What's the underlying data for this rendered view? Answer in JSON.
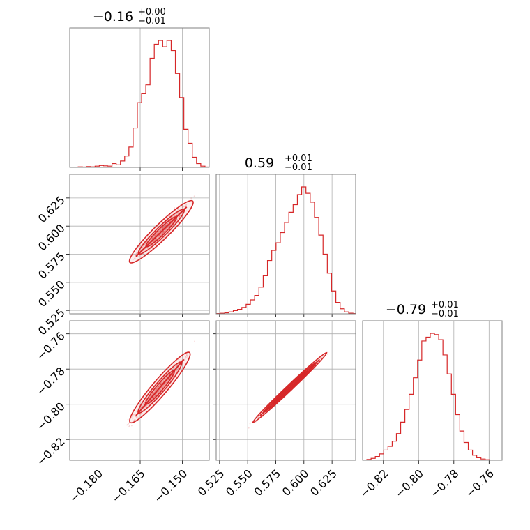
{
  "chart_data": {
    "type": "corner",
    "color": "#d62728",
    "grid": true,
    "panels": [
      {
        "kind": "hist",
        "row": 0,
        "col": 0,
        "title": {
          "median": "−0.16",
          "plus": "+0.00",
          "minus": "−0.01"
        },
        "xlim": [
          -0.19,
          -0.1405
        ],
        "bins": [
          [
            -0.19,
            0.002
          ],
          [
            -0.1885,
            0.002
          ],
          [
            -0.187,
            0.004
          ],
          [
            -0.1855,
            0.003
          ],
          [
            -0.184,
            0.006
          ],
          [
            -0.1825,
            0.004
          ],
          [
            -0.181,
            0.01
          ],
          [
            -0.1795,
            0.015
          ],
          [
            -0.178,
            0.012
          ],
          [
            -0.1765,
            0.01
          ],
          [
            -0.175,
            0.03
          ],
          [
            -0.1735,
            0.02
          ],
          [
            -0.172,
            0.05
          ],
          [
            -0.1705,
            0.09
          ],
          [
            -0.169,
            0.16
          ],
          [
            -0.1675,
            0.31
          ],
          [
            -0.166,
            0.51
          ],
          [
            -0.1645,
            0.58
          ],
          [
            -0.163,
            0.65
          ],
          [
            -0.1615,
            0.86
          ],
          [
            -0.16,
            0.97
          ],
          [
            -0.1585,
            1.0
          ],
          [
            -0.157,
            0.95
          ],
          [
            -0.1555,
            1.0
          ],
          [
            -0.154,
            0.92
          ],
          [
            -0.1525,
            0.74
          ],
          [
            -0.151,
            0.55
          ],
          [
            -0.1495,
            0.3
          ],
          [
            -0.148,
            0.19
          ],
          [
            -0.1465,
            0.08
          ],
          [
            -0.145,
            0.03
          ],
          [
            -0.1435,
            0.01
          ],
          [
            -0.142,
            0.003
          ],
          [
            -0.1405,
            0.002
          ]
        ]
      },
      {
        "kind": "scatter",
        "row": 1,
        "col": 0,
        "xlim": [
          -0.19,
          -0.1405
        ],
        "ylim": [
          0.522,
          0.646
        ],
        "line": {
          "x0": -0.1665,
          "y0": 0.573,
          "x1": -0.1485,
          "y1": 0.617
        }
      },
      {
        "kind": "hist",
        "row": 1,
        "col": 1,
        "title": {
          "median": "0.59",
          "plus": "+0.01",
          "minus": "−0.01"
        },
        "xlim": [
          0.522,
          0.646
        ],
        "bins": [
          [
            0.522,
            0.002
          ],
          [
            0.5258,
            0.004
          ],
          [
            0.5296,
            0.008
          ],
          [
            0.5334,
            0.015
          ],
          [
            0.5372,
            0.025
          ],
          [
            0.541,
            0.035
          ],
          [
            0.5448,
            0.05
          ],
          [
            0.5486,
            0.075
          ],
          [
            0.5524,
            0.11
          ],
          [
            0.5562,
            0.145
          ],
          [
            0.56,
            0.21
          ],
          [
            0.5638,
            0.3
          ],
          [
            0.5676,
            0.42
          ],
          [
            0.5714,
            0.5
          ],
          [
            0.5752,
            0.56
          ],
          [
            0.579,
            0.64
          ],
          [
            0.5828,
            0.72
          ],
          [
            0.5866,
            0.8
          ],
          [
            0.5904,
            0.86
          ],
          [
            0.5942,
            0.94
          ],
          [
            0.598,
            1.0
          ],
          [
            0.6018,
            0.95
          ],
          [
            0.6056,
            0.88
          ],
          [
            0.6094,
            0.76
          ],
          [
            0.6132,
            0.62
          ],
          [
            0.617,
            0.47
          ],
          [
            0.6208,
            0.32
          ],
          [
            0.6246,
            0.18
          ],
          [
            0.6284,
            0.09
          ],
          [
            0.6322,
            0.04
          ],
          [
            0.636,
            0.015
          ],
          [
            0.6398,
            0.005
          ],
          [
            0.6436,
            0.002
          ]
        ]
      },
      {
        "kind": "scatter",
        "row": 2,
        "col": 0,
        "xlim": [
          -0.19,
          -0.1405
        ],
        "ylim": [
          -0.8318,
          -0.7526
        ],
        "line": {
          "x0": -0.1665,
          "y0": -0.8065,
          "x1": -0.1495,
          "y1": -0.7745
        }
      },
      {
        "kind": "scatter",
        "row": 2,
        "col": 1,
        "xlim": [
          0.522,
          0.646
        ],
        "ylim": [
          -0.8318,
          -0.7526
        ],
        "line": {
          "x0": 0.561,
          "y0": -0.8065,
          "x1": 0.614,
          "y1": -0.7745
        }
      },
      {
        "kind": "hist",
        "row": 2,
        "col": 2,
        "title": {
          "median": "−0.79",
          "plus": "+0.01",
          "minus": "−0.01"
        },
        "xlim": [
          -0.8318,
          -0.7526
        ],
        "bins": [
          [
            -0.8318,
            0.002
          ],
          [
            -0.8294,
            0.006
          ],
          [
            -0.827,
            0.015
          ],
          [
            -0.8246,
            0.03
          ],
          [
            -0.8222,
            0.05
          ],
          [
            -0.8198,
            0.08
          ],
          [
            -0.8174,
            0.11
          ],
          [
            -0.815,
            0.15
          ],
          [
            -0.8126,
            0.21
          ],
          [
            -0.8102,
            0.3
          ],
          [
            -0.8078,
            0.4
          ],
          [
            -0.8054,
            0.52
          ],
          [
            -0.803,
            0.65
          ],
          [
            -0.8006,
            0.79
          ],
          [
            -0.7982,
            0.94
          ],
          [
            -0.7958,
            0.97
          ],
          [
            -0.7934,
            1.0
          ],
          [
            -0.791,
            0.99
          ],
          [
            -0.7886,
            0.95
          ],
          [
            -0.7862,
            0.83
          ],
          [
            -0.7838,
            0.68
          ],
          [
            -0.7814,
            0.52
          ],
          [
            -0.779,
            0.36
          ],
          [
            -0.7766,
            0.23
          ],
          [
            -0.7742,
            0.14
          ],
          [
            -0.7718,
            0.08
          ],
          [
            -0.7694,
            0.04
          ],
          [
            -0.767,
            0.02
          ],
          [
            -0.7646,
            0.01
          ],
          [
            -0.7622,
            0.004
          ],
          [
            -0.7598,
            0.002
          ],
          [
            -0.7574,
            0.001
          ],
          [
            -0.755,
            0.001
          ]
        ]
      }
    ],
    "axes": {
      "x": [
        {
          "col": 0,
          "ticks": [
            -0.18,
            -0.165,
            -0.15
          ],
          "labels": [
            "−0.180",
            "−0.165",
            "−0.150"
          ]
        },
        {
          "col": 1,
          "ticks": [
            0.525,
            0.55,
            0.575,
            0.6,
            0.625
          ],
          "labels": [
            "0.525",
            "0.550",
            "0.575",
            "0.600",
            "0.625"
          ]
        },
        {
          "col": 2,
          "ticks": [
            -0.82,
            -0.8,
            -0.78,
            -0.76
          ],
          "labels": [
            "−0.82",
            "−0.80",
            "−0.78",
            "−0.76"
          ]
        }
      ],
      "y": [
        {
          "row": 1,
          "ticks": [
            0.525,
            0.55,
            0.575,
            0.6,
            0.625
          ],
          "labels": [
            "0.525",
            "0.550",
            "0.575",
            "0.600",
            "0.625"
          ]
        },
        {
          "row": 2,
          "ticks": [
            -0.82,
            -0.8,
            -0.78,
            -0.76
          ],
          "labels": [
            "−0.82",
            "−0.80",
            "−0.78",
            "−0.76"
          ]
        }
      ]
    }
  }
}
